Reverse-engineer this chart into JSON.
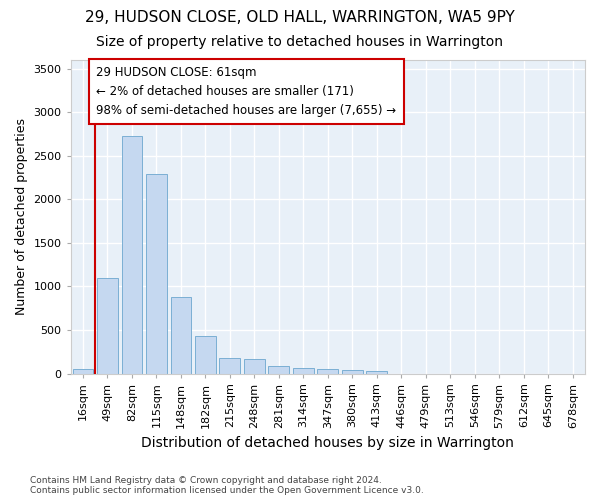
{
  "title1": "29, HUDSON CLOSE, OLD HALL, WARRINGTON, WA5 9PY",
  "title2": "Size of property relative to detached houses in Warrington",
  "xlabel": "Distribution of detached houses by size in Warrington",
  "ylabel": "Number of detached properties",
  "footer": "Contains HM Land Registry data © Crown copyright and database right 2024.\nContains public sector information licensed under the Open Government Licence v3.0.",
  "categories": [
    "16sqm",
    "49sqm",
    "82sqm",
    "115sqm",
    "148sqm",
    "182sqm",
    "215sqm",
    "248sqm",
    "281sqm",
    "314sqm",
    "347sqm",
    "380sqm",
    "413sqm",
    "446sqm",
    "479sqm",
    "513sqm",
    "546sqm",
    "579sqm",
    "612sqm",
    "645sqm",
    "678sqm"
  ],
  "values": [
    55,
    1100,
    2730,
    2290,
    880,
    430,
    175,
    165,
    90,
    65,
    55,
    35,
    30,
    0,
    0,
    0,
    0,
    0,
    0,
    0,
    0
  ],
  "bar_color": "#c5d8f0",
  "bar_edge_color": "#7bafd4",
  "vline_x": 0.5,
  "vline_color": "#cc0000",
  "annotation_text": "29 HUDSON CLOSE: 61sqm\n← 2% of detached houses are smaller (171)\n98% of semi-detached houses are larger (7,655) →",
  "annotation_box_color": "#ffffff",
  "annotation_box_edge": "#cc0000",
  "ylim": [
    0,
    3600
  ],
  "yticks": [
    0,
    500,
    1000,
    1500,
    2000,
    2500,
    3000,
    3500
  ],
  "bg_color": "#e8f0f8",
  "grid_color": "#ffffff",
  "fig_bg_color": "#ffffff",
  "title1_fontsize": 11,
  "title2_fontsize": 10,
  "xlabel_fontsize": 10,
  "ylabel_fontsize": 9,
  "tick_fontsize": 8,
  "footer_fontsize": 6.5,
  "ann_fontsize": 8.5
}
